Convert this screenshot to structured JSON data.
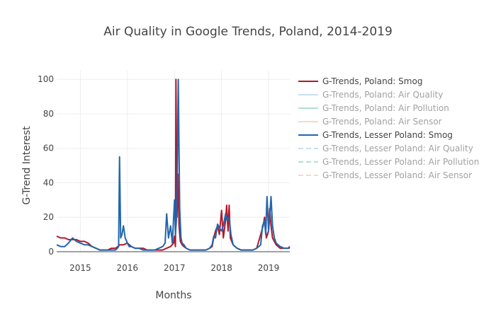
{
  "chart_data": {
    "type": "line",
    "title": "Air Quality in Google Trends, Poland, 2014-2019",
    "xlabel": "Months",
    "ylabel": "G-Trend Interest",
    "xlim": [
      "2014-07-01",
      "2019-06-15"
    ],
    "ylim": [
      0,
      105
    ],
    "x_ticks": [
      "2015",
      "2016",
      "2017",
      "2018",
      "2019"
    ],
    "y_ticks": [
      "0",
      "20",
      "40",
      "60",
      "80",
      "100"
    ],
    "grid": true,
    "legend_position": "right",
    "series": [
      {
        "name": "G-Trends, Poland: Smog",
        "color": "#b2182b",
        "dash": "solid",
        "visible": true,
        "x": [
          "2014-07-01",
          "2014-08-01",
          "2014-09-01",
          "2014-10-01",
          "2014-11-01",
          "2014-12-01",
          "2015-01-01",
          "2015-02-01",
          "2015-03-01",
          "2015-04-01",
          "2015-05-01",
          "2015-06-01",
          "2015-07-01",
          "2015-08-01",
          "2015-09-01",
          "2015-10-01",
          "2015-10-20",
          "2015-11-01",
          "2015-11-10",
          "2015-12-01",
          "2016-01-01",
          "2016-02-01",
          "2016-03-01",
          "2016-04-01",
          "2016-05-01",
          "2016-06-01",
          "2016-07-01",
          "2016-08-01",
          "2016-09-01",
          "2016-10-01",
          "2016-11-01",
          "2016-12-01",
          "2016-12-25",
          "2017-01-01",
          "2017-01-08",
          "2017-01-12",
          "2017-01-20",
          "2017-01-27",
          "2017-02-05",
          "2017-02-15",
          "2017-03-01",
          "2017-03-15",
          "2017-04-01",
          "2017-05-01",
          "2017-06-01",
          "2017-07-01",
          "2017-08-01",
          "2017-09-01",
          "2017-10-01",
          "2017-10-20",
          "2017-11-01",
          "2017-11-15",
          "2017-12-01",
          "2017-12-15",
          "2018-01-01",
          "2018-01-15",
          "2018-02-01",
          "2018-02-10",
          "2018-02-20",
          "2018-03-01",
          "2018-03-10",
          "2018-04-01",
          "2018-05-01",
          "2018-06-01",
          "2018-07-01",
          "2018-08-01",
          "2018-09-01",
          "2018-10-01",
          "2018-11-01",
          "2018-11-20",
          "2018-12-01",
          "2018-12-15",
          "2019-01-01",
          "2019-01-10",
          "2019-01-20",
          "2019-02-01",
          "2019-02-15",
          "2019-03-01",
          "2019-04-01",
          "2019-05-01",
          "2019-06-01",
          "2019-06-15"
        ],
        "values": [
          9,
          8,
          8,
          7,
          7,
          7,
          6,
          6,
          5,
          3,
          2,
          1,
          1,
          1,
          2,
          2,
          3,
          4,
          4,
          4,
          5,
          3,
          2,
          2,
          2,
          1,
          1,
          1,
          1,
          1,
          2,
          3,
          5,
          9,
          3,
          100,
          20,
          45,
          15,
          6,
          4,
          3,
          2,
          1,
          1,
          1,
          1,
          1,
          2,
          3,
          8,
          12,
          15,
          10,
          24,
          8,
          18,
          27,
          12,
          27,
          8,
          4,
          2,
          1,
          1,
          1,
          1,
          2,
          10,
          15,
          20,
          8,
          12,
          25,
          15,
          8,
          6,
          4,
          2,
          2,
          2,
          3
        ]
      },
      {
        "name": "G-Trends, Poland: Air Quality",
        "color": "#92c5de",
        "dash": "solid",
        "visible": false
      },
      {
        "name": "G-Trends, Poland: Air Pollution",
        "color": "#66c2a4",
        "dash": "solid",
        "visible": false
      },
      {
        "name": "G-Trends, Poland: Air Sensor",
        "color": "#fcae91",
        "dash": "solid",
        "visible": false
      },
      {
        "name": "G-Trends, Lesser Poland: Smog",
        "color": "#2166ac",
        "dash": "solid",
        "visible": true,
        "x": [
          "2014-07-01",
          "2014-08-01",
          "2014-09-01",
          "2014-10-01",
          "2014-11-01",
          "2014-12-01",
          "2015-01-01",
          "2015-02-01",
          "2015-03-01",
          "2015-04-01",
          "2015-05-01",
          "2015-06-01",
          "2015-07-01",
          "2015-08-01",
          "2015-09-01",
          "2015-10-01",
          "2015-10-15",
          "2015-10-25",
          "2015-11-01",
          "2015-11-10",
          "2015-11-20",
          "2015-12-01",
          "2015-12-15",
          "2016-01-01",
          "2016-01-15",
          "2016-02-01",
          "2016-03-01",
          "2016-04-01",
          "2016-05-01",
          "2016-06-01",
          "2016-07-01",
          "2016-08-01",
          "2016-09-01",
          "2016-10-01",
          "2016-10-20",
          "2016-11-01",
          "2016-11-15",
          "2016-12-01",
          "2016-12-15",
          "2017-01-01",
          "2017-01-08",
          "2017-01-15",
          "2017-01-22",
          "2017-01-30",
          "2017-02-10",
          "2017-02-20",
          "2017-03-01",
          "2017-03-15",
          "2017-04-01",
          "2017-05-01",
          "2017-06-01",
          "2017-07-01",
          "2017-08-01",
          "2017-09-01",
          "2017-10-01",
          "2017-10-20",
          "2017-11-01",
          "2017-11-15",
          "2017-12-01",
          "2017-12-15",
          "2018-01-01",
          "2018-01-15",
          "2018-02-01",
          "2018-02-15",
          "2018-03-01",
          "2018-03-15",
          "2018-04-01",
          "2018-05-01",
          "2018-06-01",
          "2018-07-01",
          "2018-08-01",
          "2018-09-01",
          "2018-10-01",
          "2018-11-01",
          "2018-11-15",
          "2018-12-01",
          "2018-12-10",
          "2018-12-20",
          "2019-01-01",
          "2019-01-10",
          "2019-01-20",
          "2019-02-01",
          "2019-02-15",
          "2019-03-01",
          "2019-04-01",
          "2019-05-01",
          "2019-06-01",
          "2019-06-15"
        ],
        "values": [
          4,
          3,
          3,
          5,
          8,
          6,
          5,
          4,
          4,
          3,
          2,
          1,
          1,
          1,
          1,
          1,
          2,
          3,
          55,
          8,
          10,
          15,
          8,
          5,
          3,
          3,
          2,
          2,
          1,
          1,
          1,
          1,
          2,
          3,
          5,
          22,
          8,
          15,
          5,
          30,
          10,
          18,
          40,
          100,
          25,
          8,
          5,
          4,
          2,
          1,
          1,
          1,
          1,
          1,
          2,
          4,
          9,
          8,
          16,
          14,
          12,
          15,
          22,
          18,
          20,
          10,
          4,
          2,
          1,
          1,
          1,
          1,
          2,
          4,
          15,
          18,
          10,
          32,
          12,
          20,
          32,
          15,
          8,
          5,
          3,
          2,
          2,
          2
        ]
      },
      {
        "name": "G-Trends, Lesser Poland: Air Quality",
        "color": "#92c5de",
        "dash": "dash",
        "visible": false
      },
      {
        "name": "G-Trends, Lesser Poland: Air Pollution",
        "color": "#66c2a4",
        "dash": "dash",
        "visible": false
      },
      {
        "name": "G-Trends, Lesser Poland: Air Sensor",
        "color": "#fcae91",
        "dash": "dash",
        "visible": false
      }
    ]
  }
}
